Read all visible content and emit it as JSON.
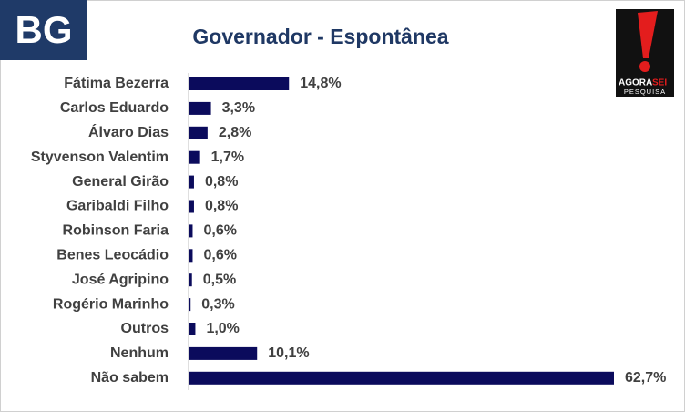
{
  "chart_data": {
    "type": "bar",
    "orientation": "horizontal",
    "title": "Governador - Espontânea",
    "categories": [
      "Fátima Bezerra",
      "Carlos Eduardo",
      "Álvaro Dias",
      "Styvenson Valentim",
      "General Girão",
      "Garibaldi Filho",
      "Robinson Faria",
      "Benes Leocádio",
      "José Agripino",
      "Rogério Marinho",
      "Outros",
      "Nenhum",
      "Não sabem"
    ],
    "values": [
      14.8,
      3.3,
      2.8,
      1.7,
      0.8,
      0.8,
      0.6,
      0.6,
      0.5,
      0.3,
      1.0,
      10.1,
      62.7
    ],
    "value_labels": [
      "14,8%",
      "3,3%",
      "2,8%",
      "1,7%",
      "0,8%",
      "0,8%",
      "0,6%",
      "0,6%",
      "0,5%",
      "0,3%",
      "1,0%",
      "10,1%",
      "62,7%"
    ],
    "color": "#0b0b5c"
  },
  "logos": {
    "left": "BG",
    "right": {
      "line1a": "AGORA",
      "line1b": "SEI",
      "line2": "PESQUISA"
    }
  }
}
